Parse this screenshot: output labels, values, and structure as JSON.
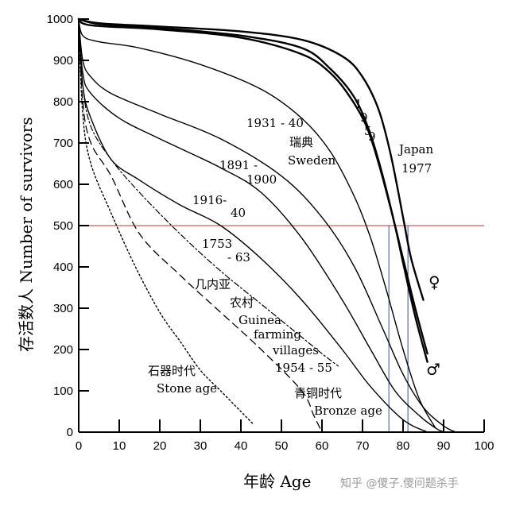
{
  "chart_data": {
    "type": "line",
    "xlabel": "年龄 Age",
    "ylabel": "存活数人 Number of survivors",
    "xlim": [
      0,
      100
    ],
    "ylim": [
      0,
      1000
    ],
    "xticks": [
      0,
      10,
      20,
      30,
      40,
      50,
      60,
      70,
      80,
      90,
      100
    ],
    "yticks": [
      0,
      100,
      200,
      300,
      400,
      500,
      600,
      700,
      800,
      900,
      1000
    ],
    "grid": false,
    "reference_line": {
      "y": 500,
      "color": "#c0392b"
    },
    "median_lines": [
      {
        "x": 76.5,
        "color": "#3a4f9a"
      },
      {
        "x": 81.2,
        "color": "#3a4f9a"
      }
    ],
    "series": [
      {
        "name": "Japan 1977 female",
        "style": "solid-bold",
        "x": [
          0,
          5,
          20,
          40,
          55,
          65,
          70,
          74,
          77,
          80,
          82,
          85
        ],
        "y": [
          1000,
          990,
          982,
          970,
          950,
          910,
          860,
          780,
          670,
          520,
          420,
          320
        ]
      },
      {
        "name": "Japan 1977 male",
        "style": "solid-bold",
        "x": [
          0,
          5,
          20,
          40,
          55,
          62,
          68,
          72,
          75,
          78,
          80,
          83,
          86
        ],
        "y": [
          1000,
          988,
          978,
          960,
          930,
          880,
          810,
          720,
          620,
          500,
          410,
          280,
          170
        ]
      },
      {
        "name": "1959",
        "style": "solid-bold",
        "x": [
          0,
          3,
          20,
          40,
          55,
          62,
          67,
          71,
          74,
          77,
          80,
          83,
          86
        ],
        "y": [
          1000,
          985,
          975,
          955,
          915,
          870,
          810,
          740,
          650,
          540,
          420,
          300,
          190
        ]
      },
      {
        "name": "Sweden 1931-40",
        "style": "solid",
        "x": [
          0,
          1,
          5,
          15,
          30,
          45,
          55,
          62,
          68,
          72,
          76,
          80,
          84,
          88
        ],
        "y": [
          1000,
          960,
          945,
          930,
          890,
          830,
          760,
          680,
          570,
          470,
          340,
          200,
          80,
          10
        ]
      },
      {
        "name": "Sweden 1891-1900",
        "style": "solid",
        "x": [
          0,
          1,
          3,
          8,
          20,
          35,
          50,
          60,
          68,
          75,
          80,
          85,
          90,
          93
        ],
        "y": [
          1000,
          900,
          860,
          820,
          770,
          710,
          620,
          520,
          400,
          250,
          140,
          60,
          15,
          0
        ]
      },
      {
        "name": "Sweden 1916-40",
        "style": "solid",
        "x": [
          0,
          1,
          3,
          10,
          20,
          35,
          45,
          55,
          65,
          72,
          78,
          84,
          88,
          90
        ],
        "y": [
          1000,
          870,
          820,
          760,
          710,
          640,
          580,
          470,
          320,
          200,
          100,
          40,
          10,
          0
        ]
      },
      {
        "name": "1753-63",
        "style": "solid",
        "x": [
          0,
          1,
          3,
          8,
          15,
          25,
          35,
          45,
          55,
          65,
          72,
          80,
          86
        ],
        "y": [
          1000,
          840,
          760,
          660,
          610,
          550,
          500,
          420,
          320,
          200,
          110,
          30,
          0
        ]
      },
      {
        "name": "Guinea farming villages 1954-55",
        "style": "dashdot",
        "x": [
          0,
          1,
          3,
          8,
          15,
          25,
          35,
          45,
          55,
          60,
          64
        ],
        "y": [
          1000,
          840,
          740,
          660,
          580,
          480,
          390,
          310,
          230,
          190,
          160
        ]
      },
      {
        "name": "Bronze age",
        "style": "dashed",
        "x": [
          0,
          1,
          3,
          8,
          15,
          25,
          35,
          45,
          55,
          58,
          60
        ],
        "y": [
          1000,
          800,
          700,
          620,
          480,
          380,
          290,
          200,
          100,
          40,
          0
        ]
      },
      {
        "name": "Stone age",
        "style": "dotted",
        "x": [
          0,
          1,
          3,
          8,
          14,
          20,
          25,
          30,
          35,
          40,
          43
        ],
        "y": [
          1000,
          770,
          650,
          530,
          400,
          290,
          220,
          150,
          100,
          50,
          20
        ]
      }
    ],
    "annotations": [
      {
        "id": "y1959-1",
        "text": "1"
      },
      {
        "id": "y1959-2",
        "text": "9"
      },
      {
        "id": "y1959-3",
        "text": "5"
      },
      {
        "id": "y1959-4",
        "text": "9"
      },
      {
        "id": "japan",
        "text": "Japan"
      },
      {
        "id": "japan-year",
        "text": "1977"
      },
      {
        "id": "sweden-31-years",
        "text": "1931 - 40"
      },
      {
        "id": "sweden-cn",
        "text": "瑞典"
      },
      {
        "id": "sweden-en",
        "text": "Sweden"
      },
      {
        "id": "sweden-1891",
        "text": "1891 -"
      },
      {
        "id": "sweden-1900",
        "text": "1900"
      },
      {
        "id": "sweden-1916",
        "text": "1916-"
      },
      {
        "id": "sweden-40",
        "text": "40"
      },
      {
        "id": "y1753",
        "text": "1753"
      },
      {
        "id": "y63",
        "text": "- 63"
      },
      {
        "id": "guinea-cn",
        "text": "几内亚"
      },
      {
        "id": "farming-cn",
        "text": "农村"
      },
      {
        "id": "guinea-en",
        "text": "Guinea"
      },
      {
        "id": "farming-en",
        "text": "farming"
      },
      {
        "id": "villages-en",
        "text": "villages"
      },
      {
        "id": "guinea-years",
        "text": "1954 - 55"
      },
      {
        "id": "stone-cn",
        "text": "石器时代"
      },
      {
        "id": "stone-en",
        "text": "Stone age"
      },
      {
        "id": "bronze-cn",
        "text": "青铜时代"
      },
      {
        "id": "bronze-en",
        "text": "Bronze age"
      },
      {
        "id": "female-symbol",
        "text": "♀"
      },
      {
        "id": "male-symbol",
        "text": "♂"
      }
    ]
  },
  "watermark": "知乎 @傻子.傻问题杀手"
}
